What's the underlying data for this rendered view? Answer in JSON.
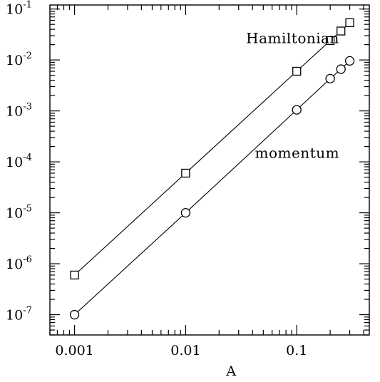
{
  "chart_data": {
    "type": "scatter",
    "title": "",
    "xlabel": "A",
    "ylabel": "",
    "xscale": "log",
    "yscale": "log",
    "xlim": [
      0.0006,
      0.45
    ],
    "ylim": [
      4e-08,
      0.12
    ],
    "x_ticks": [
      {
        "value": 0.001,
        "label": "0.001"
      },
      {
        "value": 0.01,
        "label": "0.01"
      },
      {
        "value": 0.1,
        "label": "0.1"
      }
    ],
    "y_ticks": [
      {
        "value": 1e-07,
        "base": "10",
        "exp": "-7"
      },
      {
        "value": 1e-06,
        "base": "10",
        "exp": "-6"
      },
      {
        "value": 1e-05,
        "base": "10",
        "exp": "-5"
      },
      {
        "value": 0.0001,
        "base": "10",
        "exp": "-4"
      },
      {
        "value": 0.001,
        "base": "10",
        "exp": "-3"
      },
      {
        "value": 0.01,
        "base": "10",
        "exp": "-2"
      },
      {
        "value": 0.1,
        "base": "10",
        "exp": "-1"
      }
    ],
    "series": [
      {
        "name": "Hamiltonian",
        "marker": "square",
        "x": [
          0.001,
          0.01,
          0.1,
          0.2,
          0.25,
          0.3
        ],
        "y": [
          6e-07,
          6e-05,
          0.006,
          0.024,
          0.037,
          0.054
        ]
      },
      {
        "name": "momentum",
        "marker": "circle",
        "x": [
          0.001,
          0.01,
          0.1,
          0.2,
          0.25,
          0.3
        ],
        "y": [
          1e-07,
          1e-05,
          0.00105,
          0.0043,
          0.0066,
          0.0096
        ]
      }
    ],
    "annotations": [
      {
        "text": "Hamiltonian",
        "series": 0
      },
      {
        "text": "momentum",
        "series": 1
      }
    ],
    "grid": false,
    "legend": "none"
  }
}
